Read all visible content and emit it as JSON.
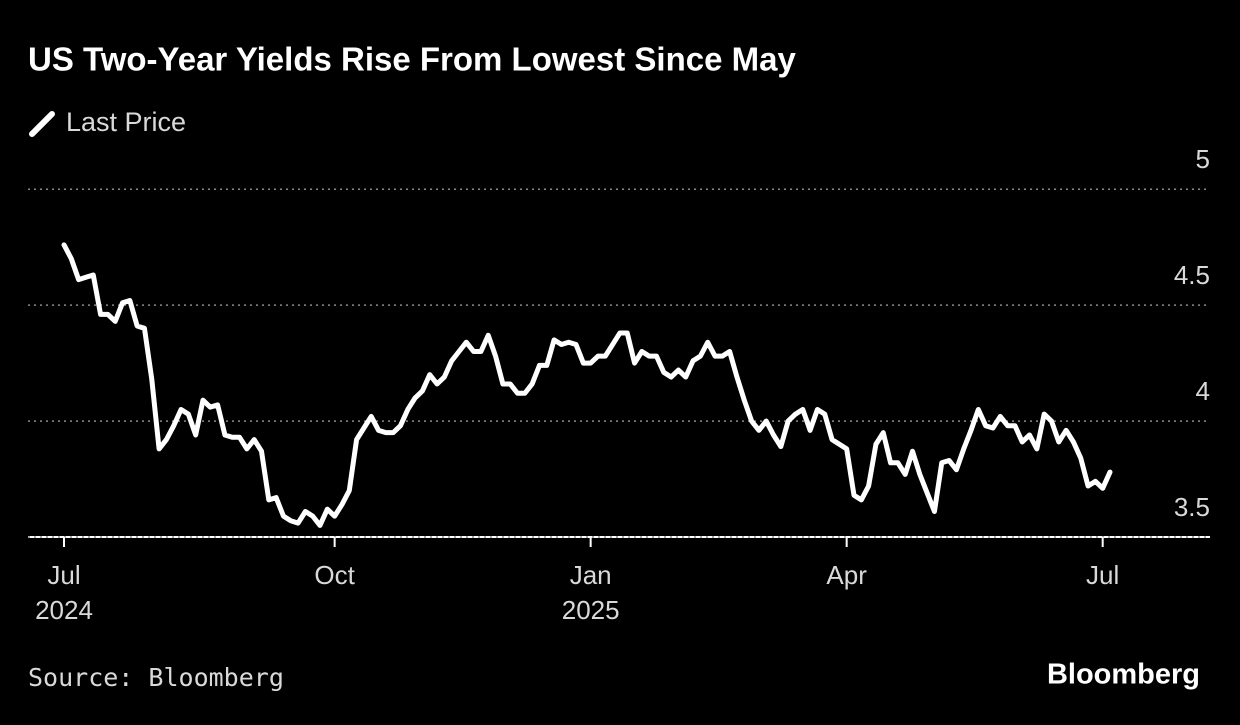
{
  "chart_data": {
    "type": "line",
    "title": "US Two-Year Yields Rise From Lowest Since May",
    "source": "Source: Bloomberg",
    "brand": "Bloomberg",
    "categories": [
      "Jul 2024",
      null,
      null,
      null,
      null,
      null,
      null,
      null,
      null,
      null,
      null,
      null,
      null,
      null,
      null,
      null,
      null,
      null,
      null,
      null,
      null,
      null,
      null,
      null,
      null,
      null,
      null,
      null,
      null,
      null,
      null,
      null,
      null,
      null,
      null,
      null,
      null,
      "Oct",
      null,
      null,
      null,
      null,
      null,
      null,
      null,
      null,
      null,
      null,
      null,
      null,
      null,
      null,
      null,
      null,
      null,
      null,
      null,
      null,
      null,
      null,
      null,
      null,
      null,
      null,
      null,
      null,
      null,
      null,
      null,
      null,
      null,
      null,
      "Jan 2025",
      null,
      null,
      null,
      null,
      null,
      null,
      null,
      null,
      null,
      null,
      null,
      null,
      null,
      null,
      null,
      null,
      null,
      null,
      null,
      null,
      null,
      null,
      null,
      null,
      null,
      null,
      null,
      null,
      null,
      null,
      null,
      null,
      null,
      null,
      "Apr",
      null,
      null,
      null,
      null,
      null,
      null,
      null,
      null,
      null,
      null,
      null,
      null,
      null,
      null,
      null,
      null,
      null,
      null,
      null,
      null,
      null,
      null,
      null,
      null,
      null,
      null,
      null,
      null,
      null,
      null,
      null,
      null,
      null,
      null,
      "Jul",
      null
    ],
    "series": [
      {
        "name": "Last Price",
        "color": "#ffffff",
        "values": [
          4.76,
          4.7,
          4.61,
          4.62,
          4.63,
          4.46,
          4.46,
          4.43,
          4.51,
          4.52,
          4.41,
          4.4,
          4.18,
          3.88,
          3.92,
          3.98,
          4.05,
          4.03,
          3.94,
          4.09,
          4.06,
          4.07,
          3.94,
          3.93,
          3.93,
          3.88,
          3.92,
          3.87,
          3.66,
          3.67,
          3.59,
          3.57,
          3.56,
          3.61,
          3.59,
          3.55,
          3.62,
          3.59,
          3.64,
          3.7,
          3.92,
          3.97,
          4.02,
          3.96,
          3.95,
          3.95,
          3.98,
          4.05,
          4.1,
          4.13,
          4.2,
          4.16,
          4.19,
          4.26,
          4.3,
          4.34,
          4.3,
          4.3,
          4.37,
          4.28,
          4.16,
          4.16,
          4.12,
          4.12,
          4.16,
          4.24,
          4.24,
          4.35,
          4.33,
          4.34,
          4.33,
          4.25,
          4.25,
          4.28,
          4.28,
          4.33,
          4.38,
          4.38,
          4.25,
          4.3,
          4.28,
          4.28,
          4.21,
          4.19,
          4.22,
          4.19,
          4.26,
          4.28,
          4.34,
          4.28,
          4.28,
          4.3,
          4.19,
          4.09,
          4.0,
          3.96,
          4.0,
          3.94,
          3.89,
          4.0,
          4.03,
          4.05,
          3.96,
          4.05,
          4.03,
          3.92,
          3.9,
          3.88,
          3.68,
          3.66,
          3.72,
          3.9,
          3.95,
          3.82,
          3.82,
          3.77,
          3.87,
          3.77,
          3.69,
          3.61,
          3.82,
          3.83,
          3.79,
          3.88,
          3.96,
          4.05,
          3.98,
          3.97,
          4.02,
          3.98,
          3.98,
          3.91,
          3.94,
          3.88,
          4.03,
          4.0,
          3.91,
          3.96,
          3.91,
          3.84,
          3.72,
          3.74,
          3.71,
          3.78
        ]
      }
    ],
    "ylim": [
      3.5,
      5.1
    ],
    "yticks": [
      3.5,
      4,
      4.5,
      5
    ],
    "grid": true
  }
}
